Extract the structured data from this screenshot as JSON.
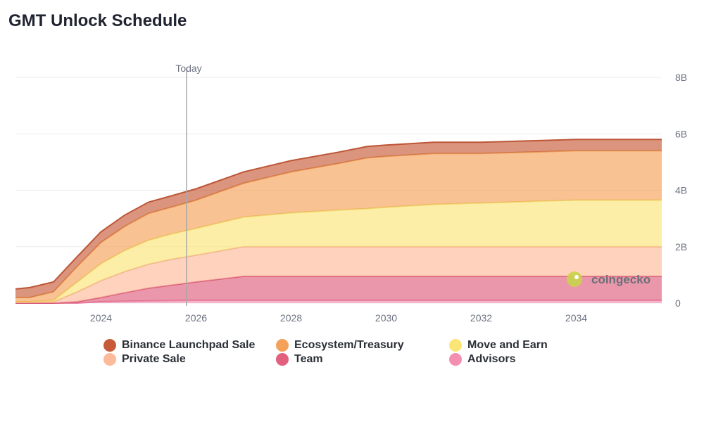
{
  "chart_data": {
    "type": "area",
    "title": "GMT Unlock Schedule",
    "stacked": true,
    "xlabel": "",
    "ylabel": "",
    "xlim": [
      2022.2,
      2035.8
    ],
    "ylim": [
      0,
      8
    ],
    "x_ticks": [
      2024,
      2026,
      2028,
      2030,
      2032,
      2034
    ],
    "x_tick_labels": [
      "2024",
      "2026",
      "2028",
      "2030",
      "2032",
      "2034"
    ],
    "y_ticks": [
      0,
      2,
      4,
      6,
      8
    ],
    "y_tick_labels": [
      "0",
      "2B",
      "4B",
      "6B",
      "8B"
    ],
    "y_axis_position": "right",
    "marker": {
      "label": "Today",
      "x": 2025.8
    },
    "legend_position": "bottom",
    "x": [
      2022.2,
      2022.5,
      2023.0,
      2023.5,
      2024.0,
      2024.5,
      2025.0,
      2025.5,
      2026.0,
      2026.5,
      2027.0,
      2028.0,
      2029.0,
      2029.6,
      2030.0,
      2031.0,
      2032.0,
      2033.0,
      2034.0,
      2035.0,
      2035.8
    ],
    "series": [
      {
        "name": "Advisors",
        "color": "#f48fb1",
        "values": [
          0.0,
          0.0,
          0.0,
          0.0,
          0.05,
          0.07,
          0.08,
          0.09,
          0.1,
          0.1,
          0.1,
          0.1,
          0.1,
          0.1,
          0.1,
          0.1,
          0.1,
          0.1,
          0.1,
          0.1,
          0.1
        ]
      },
      {
        "name": "Team",
        "color": "#e0607e",
        "values": [
          0.0,
          0.0,
          0.0,
          0.05,
          0.15,
          0.3,
          0.45,
          0.55,
          0.65,
          0.75,
          0.85,
          0.85,
          0.85,
          0.85,
          0.85,
          0.85,
          0.85,
          0.85,
          0.85,
          0.85,
          0.85
        ]
      },
      {
        "name": "Private Sale",
        "color": "#fdba9a",
        "values": [
          0.05,
          0.05,
          0.05,
          0.35,
          0.6,
          0.75,
          0.85,
          0.92,
          0.95,
          1.0,
          1.05,
          1.05,
          1.05,
          1.05,
          1.05,
          1.05,
          1.05,
          1.05,
          1.05,
          1.05,
          1.05
        ]
      },
      {
        "name": "Move and Earn",
        "color": "#fbe576",
        "values": [
          0.0,
          0.0,
          0.05,
          0.35,
          0.6,
          0.75,
          0.85,
          0.9,
          0.95,
          1.0,
          1.05,
          1.2,
          1.3,
          1.35,
          1.4,
          1.5,
          1.55,
          1.6,
          1.65,
          1.65,
          1.65
        ]
      },
      {
        "name": "Ecosystem/Treasury",
        "color": "#f4a259",
        "values": [
          0.15,
          0.15,
          0.3,
          0.55,
          0.75,
          0.85,
          0.95,
          0.95,
          1.0,
          1.1,
          1.2,
          1.45,
          1.65,
          1.8,
          1.8,
          1.8,
          1.75,
          1.75,
          1.75,
          1.75,
          1.75
        ]
      },
      {
        "name": "Binance Launchpad Sale",
        "color": "#c75b39",
        "values": [
          0.3,
          0.35,
          0.35,
          0.35,
          0.38,
          0.4,
          0.4,
          0.4,
          0.4,
          0.4,
          0.4,
          0.4,
          0.4,
          0.4,
          0.4,
          0.4,
          0.4,
          0.4,
          0.4,
          0.4,
          0.4
        ]
      }
    ],
    "legend_order": [
      "Binance Launchpad Sale",
      "Ecosystem/Treasury",
      "Move and Earn",
      "Private Sale",
      "Team",
      "Advisors"
    ],
    "watermark": "coingecko"
  }
}
